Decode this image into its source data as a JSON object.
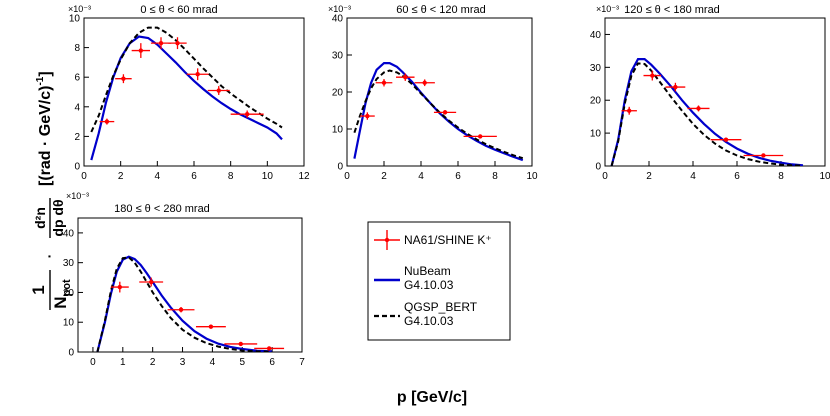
{
  "figure": {
    "xlabel": "p [GeV/c]",
    "ylabel": {
      "prefix_num": "1",
      "prefix_den": "N",
      "prefix_den_sub": "pot",
      "dot": "·",
      "frac_num": "d²n",
      "frac_den": "dp dθ",
      "units": "[(rad · GeV/c)",
      "units_sup": "-1",
      "units_close": "]"
    }
  },
  "legend": {
    "entries": [
      {
        "label": "NA61/SHINE K⁺",
        "style": "data",
        "color": "#ff0000"
      },
      {
        "label": "NuBeam",
        "label2": "G4.10.03",
        "style": "solid",
        "color": "#0000cc"
      },
      {
        "label": "QGSP_BERT",
        "label2": "G4.10.03",
        "style": "dashed",
        "color": "#000000"
      }
    ]
  },
  "chart_data": [
    {
      "type": "line",
      "title": "0 ≤ θ < 60 mrad",
      "exponent": "×10⁻³",
      "xlim": [
        0,
        12
      ],
      "ylim": [
        0,
        10
      ],
      "xticks": [
        0,
        2,
        4,
        6,
        8,
        10,
        12
      ],
      "yticks": [
        0,
        2,
        4,
        6,
        8,
        10
      ],
      "data": {
        "name": "NA61/SHINE K⁺",
        "points": [
          {
            "x": 1.25,
            "y": 3.0,
            "xerr": 0.4,
            "yerr": 0.2
          },
          {
            "x": 2.15,
            "y": 5.9,
            "xerr": 0.45,
            "yerr": 0.3
          },
          {
            "x": 3.1,
            "y": 7.8,
            "xerr": 0.5,
            "yerr": 0.5
          },
          {
            "x": 4.2,
            "y": 8.3,
            "xerr": 0.55,
            "yerr": 0.4
          },
          {
            "x": 5.1,
            "y": 8.3,
            "xerr": 0.5,
            "yerr": 0.4
          },
          {
            "x": 6.2,
            "y": 6.2,
            "xerr": 0.6,
            "yerr": 0.4
          },
          {
            "x": 7.35,
            "y": 5.1,
            "xerr": 0.6,
            "yerr": 0.3
          },
          {
            "x": 8.9,
            "y": 3.5,
            "xerr": 0.9,
            "yerr": 0.25
          }
        ]
      },
      "series": [
        {
          "name": "NuBeam G4.10.03",
          "x": [
            0.4,
            0.8,
            1.2,
            1.6,
            2.0,
            2.5,
            3.0,
            3.5,
            4.0,
            4.5,
            5.0,
            5.5,
            6.0,
            6.5,
            7.0,
            7.5,
            8.0,
            8.5,
            9.0,
            9.5,
            10.0,
            10.5,
            10.8
          ],
          "y": [
            0.4,
            2.2,
            4.3,
            6.0,
            7.3,
            8.3,
            8.75,
            8.65,
            8.2,
            7.6,
            7.0,
            6.35,
            5.75,
            5.2,
            4.7,
            4.25,
            3.85,
            3.5,
            3.2,
            2.9,
            2.6,
            2.2,
            1.8
          ]
        },
        {
          "name": "QGSP_BERT G4.10.03",
          "x": [
            0.4,
            0.8,
            1.2,
            1.6,
            2.0,
            2.5,
            3.0,
            3.5,
            4.0,
            4.5,
            5.0,
            5.5,
            6.0,
            6.5,
            7.0,
            7.5,
            8.0,
            8.5,
            9.0,
            9.5,
            10.0,
            10.5,
            10.8
          ],
          "y": [
            2.3,
            3.4,
            4.8,
            6.1,
            7.2,
            8.3,
            9.0,
            9.35,
            9.35,
            9.0,
            8.5,
            7.9,
            7.25,
            6.6,
            6.0,
            5.4,
            4.9,
            4.45,
            4.0,
            3.6,
            3.2,
            2.85,
            2.6
          ]
        }
      ]
    },
    {
      "type": "line",
      "title": "60 ≤ θ < 120 mrad",
      "exponent": "×10⁻³",
      "xlim": [
        0,
        10
      ],
      "ylim": [
        0,
        40
      ],
      "xticks": [
        0,
        2,
        4,
        6,
        8,
        10
      ],
      "yticks": [
        0,
        10,
        20,
        30,
        40
      ],
      "data": {
        "name": "NA61/SHINE K⁺",
        "points": [
          {
            "x": 1.1,
            "y": 13.5,
            "xerr": 0.4,
            "yerr": 1.0
          },
          {
            "x": 2.0,
            "y": 22.5,
            "xerr": 0.45,
            "yerr": 1.0
          },
          {
            "x": 3.15,
            "y": 24.0,
            "xerr": 0.5,
            "yerr": 1.0
          },
          {
            "x": 4.2,
            "y": 22.5,
            "xerr": 0.55,
            "yerr": 0.9
          },
          {
            "x": 5.3,
            "y": 14.5,
            "xerr": 0.6,
            "yerr": 0.6
          },
          {
            "x": 7.2,
            "y": 8.0,
            "xerr": 0.9,
            "yerr": 0.4
          }
        ]
      },
      "series": [
        {
          "name": "NuBeam G4.10.03",
          "x": [
            0.4,
            0.7,
            1.0,
            1.3,
            1.6,
            2.0,
            2.3,
            2.7,
            3.0,
            3.5,
            4.0,
            4.5,
            5.0,
            5.5,
            6.0,
            6.5,
            7.0,
            7.5,
            8.0,
            8.5,
            9.0,
            9.5
          ],
          "y": [
            2.0,
            9.5,
            17.0,
            22.5,
            26.0,
            27.8,
            27.8,
            26.8,
            25.4,
            22.8,
            19.8,
            17.0,
            14.3,
            12.0,
            10.0,
            8.3,
            6.8,
            5.5,
            4.4,
            3.4,
            2.5,
            1.6
          ]
        },
        {
          "name": "QGSP_BERT G4.10.03",
          "x": [
            0.4,
            0.7,
            1.0,
            1.3,
            1.6,
            2.0,
            2.3,
            2.7,
            3.0,
            3.5,
            4.0,
            4.5,
            5.0,
            5.5,
            6.0,
            6.5,
            7.0,
            7.5,
            8.0,
            8.5,
            9.0,
            9.5
          ],
          "y": [
            9.0,
            13.5,
            17.5,
            21.0,
            23.5,
            25.3,
            25.8,
            25.3,
            24.4,
            22.2,
            19.6,
            17.0,
            14.5,
            12.3,
            10.4,
            8.7,
            7.2,
            5.9,
            4.8,
            3.8,
            2.9,
            2.1
          ]
        }
      ]
    },
    {
      "type": "line",
      "title": "120 ≤ θ < 180 mrad",
      "exponent": "×10⁻³",
      "xlim": [
        0,
        10
      ],
      "ylim": [
        0,
        45
      ],
      "xticks": [
        0,
        2,
        4,
        6,
        8,
        10
      ],
      "yticks": [
        0,
        10,
        20,
        30,
        40
      ],
      "data": {
        "name": "NA61/SHINE K⁺",
        "points": [
          {
            "x": 1.1,
            "y": 16.8,
            "xerr": 0.35,
            "yerr": 1.2
          },
          {
            "x": 2.15,
            "y": 27.5,
            "xerr": 0.4,
            "yerr": 1.5
          },
          {
            "x": 3.2,
            "y": 24.0,
            "xerr": 0.45,
            "yerr": 1.3
          },
          {
            "x": 4.25,
            "y": 17.5,
            "xerr": 0.5,
            "yerr": 0.9
          },
          {
            "x": 5.5,
            "y": 8.0,
            "xerr": 0.7,
            "yerr": 0.5
          },
          {
            "x": 7.2,
            "y": 3.2,
            "xerr": 0.9,
            "yerr": 0.3
          }
        ]
      },
      "series": [
        {
          "name": "NuBeam G4.10.03",
          "x": [
            0.3,
            0.6,
            0.9,
            1.2,
            1.5,
            1.8,
            2.1,
            2.5,
            3.0,
            3.5,
            4.0,
            4.5,
            5.0,
            5.5,
            6.0,
            6.5,
            7.0,
            7.5,
            8.0,
            8.5,
            9.0
          ],
          "y": [
            0.0,
            8.0,
            20.0,
            28.8,
            32.5,
            32.5,
            30.8,
            28.0,
            24.2,
            20.0,
            16.2,
            12.8,
            9.8,
            7.3,
            5.3,
            3.7,
            2.5,
            1.6,
            1.0,
            0.5,
            0.2
          ]
        },
        {
          "name": "QGSP_BERT G4.10.03",
          "x": [
            0.3,
            0.6,
            0.9,
            1.2,
            1.5,
            1.8,
            2.1,
            2.5,
            3.0,
            3.5,
            4.0,
            4.5,
            5.0,
            5.5,
            6.0,
            6.5,
            7.0,
            7.5,
            8.0,
            8.5,
            9.0
          ],
          "y": [
            0.0,
            7.5,
            19.0,
            27.5,
            31.2,
            31.0,
            29.0,
            25.5,
            21.0,
            16.8,
            12.8,
            9.5,
            6.8,
            4.7,
            3.2,
            2.1,
            1.3,
            0.8,
            0.4,
            0.2,
            0.1
          ]
        }
      ]
    },
    {
      "type": "line",
      "title": "180 ≤ θ < 280 mrad",
      "exponent": "×10⁻³",
      "xlim": [
        -0.5,
        7
      ],
      "ylim": [
        0,
        45
      ],
      "xticks": [
        0,
        1,
        2,
        3,
        4,
        5,
        6,
        7
      ],
      "yticks": [
        0,
        10,
        20,
        30,
        40
      ],
      "data": {
        "name": "NA61/SHINE K⁺",
        "points": [
          {
            "x": 0.9,
            "y": 21.8,
            "xerr": 0.3,
            "yerr": 1.8
          },
          {
            "x": 1.95,
            "y": 23.5,
            "xerr": 0.4,
            "yerr": 1.5
          },
          {
            "x": 2.95,
            "y": 14.2,
            "xerr": 0.45,
            "yerr": 0.9
          },
          {
            "x": 3.95,
            "y": 8.5,
            "xerr": 0.5,
            "yerr": 0.6
          },
          {
            "x": 4.95,
            "y": 2.7,
            "xerr": 0.55,
            "yerr": 0.3
          },
          {
            "x": 5.9,
            "y": 1.2,
            "xerr": 0.5,
            "yerr": 0.2
          }
        ]
      },
      "series": [
        {
          "name": "NuBeam G4.10.03",
          "x": [
            0.15,
            0.4,
            0.6,
            0.8,
            1.0,
            1.2,
            1.4,
            1.6,
            1.8,
            2.0,
            2.3,
            2.6,
            3.0,
            3.4,
            3.8,
            4.2,
            4.6,
            5.0,
            5.5,
            6.0
          ],
          "y": [
            0.0,
            10.0,
            19.5,
            27.0,
            31.0,
            32.0,
            31.2,
            29.2,
            26.5,
            23.5,
            19.0,
            15.0,
            10.5,
            7.0,
            4.5,
            2.8,
            1.7,
            1.0,
            0.4,
            0.2
          ]
        },
        {
          "name": "QGSP_BERT G4.10.03",
          "x": [
            0.15,
            0.4,
            0.6,
            0.8,
            1.0,
            1.2,
            1.4,
            1.6,
            1.8,
            2.0,
            2.3,
            2.6,
            3.0,
            3.4,
            3.8,
            4.2,
            4.6,
            5.0,
            5.5,
            6.0
          ],
          "y": [
            0.0,
            10.5,
            20.5,
            28.0,
            31.5,
            31.8,
            30.0,
            27.0,
            23.5,
            20.0,
            15.5,
            11.5,
            7.5,
            4.8,
            3.0,
            1.8,
            1.0,
            0.5,
            0.2,
            0.1
          ]
        }
      ]
    }
  ]
}
